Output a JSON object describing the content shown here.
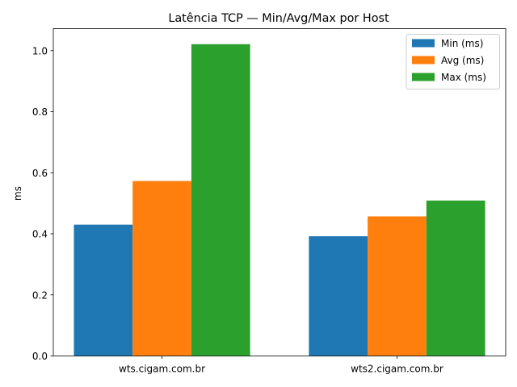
{
  "chart_data": {
    "type": "bar",
    "title": "Latência TCP — Min/Avg/Max por Host",
    "xlabel": "",
    "ylabel": "ms",
    "categories": [
      "wts.cigam.com.br",
      "wts2.cigam.com.br"
    ],
    "series": [
      {
        "name": "Min (ms)",
        "values": [
          0.43,
          0.392
        ],
        "color": "#1f77b4"
      },
      {
        "name": "Avg (ms)",
        "values": [
          0.573,
          0.457
        ],
        "color": "#ff7f0e"
      },
      {
        "name": "Max (ms)",
        "values": [
          1.021,
          0.509
        ],
        "color": "#2ca02c"
      }
    ],
    "ylim": [
      0,
      1.072
    ],
    "yticks": [
      "0.0",
      "0.2",
      "0.4",
      "0.6",
      "0.8",
      "1.0"
    ],
    "ytick_values": [
      0,
      0.2,
      0.4,
      0.6,
      0.8,
      1.0
    ],
    "grid": false,
    "legend_position": "top-right"
  }
}
